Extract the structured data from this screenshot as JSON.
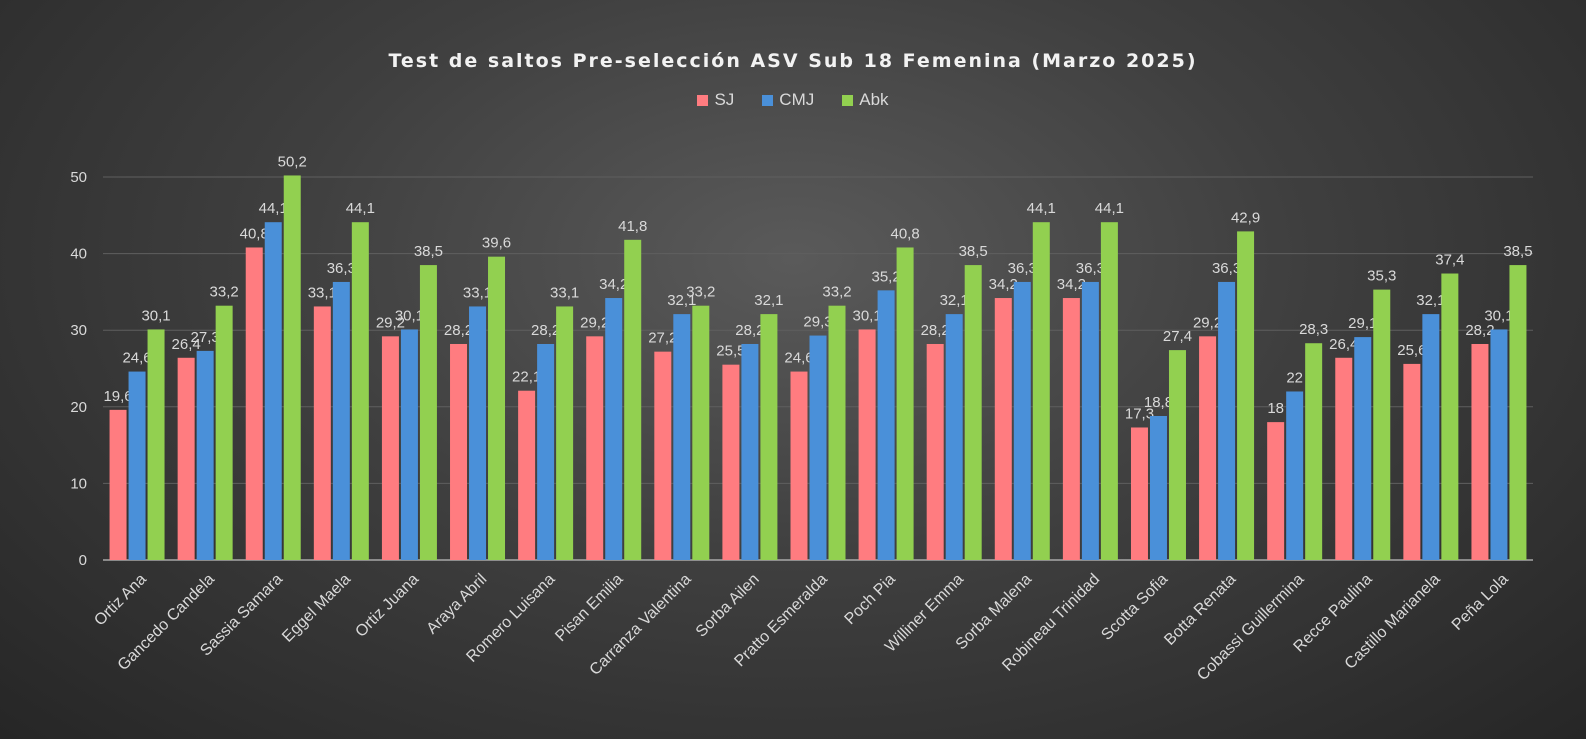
{
  "chart_data": {
    "type": "bar",
    "title": "Test de saltos Pre-selección ASV Sub 18 Femenina (Marzo 2025)",
    "xlabel": "",
    "ylabel": "",
    "ylim": [
      0,
      50
    ],
    "yticks": [
      "0",
      "10",
      "20",
      "30",
      "40",
      "50"
    ],
    "grid": true,
    "legend_position": "top",
    "categories": [
      "Ortiz Ana",
      "Gancedo Candela",
      "Sassia Samara",
      "Eggel Maela",
      "Ortiz Juana",
      "Araya Abril",
      "Romero Luisana",
      "Pisan Emilia",
      "Carranza Valentina",
      "Sorba Ailen",
      "Pratto Esmeralda",
      "Poch Pia",
      "Williner Emma",
      "Sorba Malena",
      "Robineau Trinidad",
      "Scotta Sofia",
      "Botta Renata",
      "Cobassi Guillermina",
      "Recce Paulina",
      "Castillo Marianela",
      "Peña Lola"
    ],
    "series": [
      {
        "name": "SJ",
        "color": "#ff7c80",
        "values": [
          19.6,
          26.4,
          40.8,
          33.1,
          29.2,
          28.2,
          22.1,
          29.2,
          27.2,
          25.5,
          24.6,
          30.1,
          28.2,
          34.2,
          34.2,
          17.3,
          29.2,
          18,
          26.4,
          25.6,
          28.2
        ],
        "labels": [
          "19,6",
          "26,4",
          "40,8",
          "33,1",
          "29,2",
          "28,2",
          "22,1",
          "29,2",
          "27,2",
          "25,5",
          "24,6",
          "30,1",
          "28,2",
          "34,2",
          "34,2",
          "17,3",
          "29,2",
          "18",
          "26,4",
          "25,6",
          "28,2"
        ]
      },
      {
        "name": "CMJ",
        "color": "#4a90d9",
        "values": [
          24.6,
          27.3,
          44.1,
          36.3,
          30.1,
          33.1,
          28.2,
          34.2,
          32.1,
          28.2,
          29.3,
          35.2,
          32.1,
          36.3,
          36.3,
          18.8,
          36.3,
          22,
          29.1,
          32.1,
          30.1
        ],
        "labels": [
          "24,6",
          "27,3",
          "44,1",
          "36,3",
          "30,1",
          "33,1",
          "28,2",
          "34,2",
          "32,1",
          "28,2",
          "29,3",
          "35,2",
          "32,1",
          "36,3",
          "36,3",
          "18,8",
          "36,3",
          "22",
          "29,1",
          "32,1",
          "30,1"
        ]
      },
      {
        "name": "Abk",
        "color": "#92d050",
        "values": [
          30.1,
          33.2,
          50.2,
          44.1,
          38.5,
          39.6,
          33.1,
          41.8,
          33.2,
          32.1,
          33.2,
          40.8,
          38.5,
          44.1,
          44.1,
          27.4,
          42.9,
          28.3,
          35.3,
          37.4,
          38.5
        ],
        "labels": [
          "30,1",
          "33,2",
          "50,2",
          "44,1",
          "38,5",
          "39,6",
          "33,1",
          "41,8",
          "33,2",
          "32,1",
          "33,2",
          "40,8",
          "38,5",
          "44,1",
          "44,1",
          "27,4",
          "42,9",
          "28,3",
          "35,3",
          "37,4",
          "38,5"
        ]
      }
    ]
  }
}
